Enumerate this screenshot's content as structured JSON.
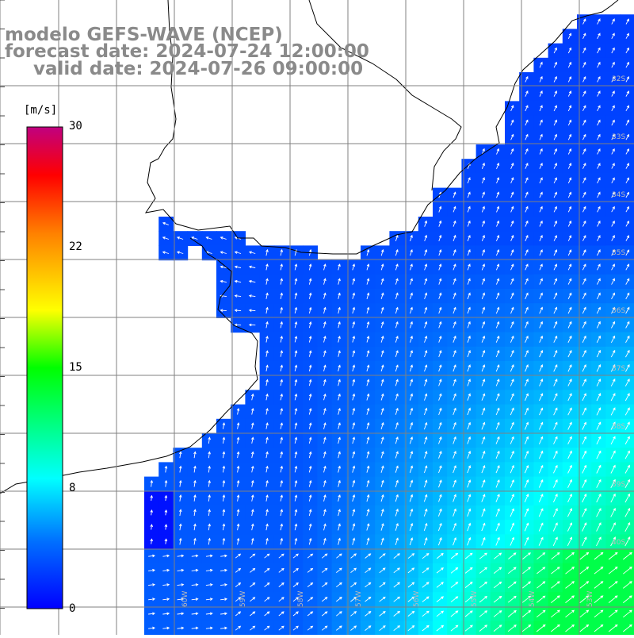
{
  "header": {
    "line1": "modelo GEFS-WAVE (NCEP)",
    "line2": "forecast date: 2024-07-24 12:00:00",
    "line3": "valid date: 2024-07-26 09:00:00"
  },
  "legend": {
    "unit": "[m/s]",
    "ticks": [
      "30",
      "22",
      "15",
      "8",
      "0"
    ],
    "range": [
      0,
      30
    ],
    "colors": [
      "#0000ff",
      "#00a0ff",
      "#00ffff",
      "#00ff00",
      "#ffff00",
      "#ff8000",
      "#ff0000",
      "#c00080"
    ]
  },
  "map": {
    "latitude_labels": [
      "32S",
      "33S",
      "34S",
      "35S",
      "36S",
      "37S",
      "38S",
      "39S",
      "40S"
    ],
    "longitude_labels": [
      "60W",
      "59W",
      "58W",
      "57W",
      "56W",
      "55W",
      "54W",
      "53W"
    ],
    "field": "wind speed with direction arrows",
    "colors": {
      "land": "#ffffff",
      "coast": "#000000",
      "grid": "#808080",
      "arrow": "#ffffff"
    }
  }
}
